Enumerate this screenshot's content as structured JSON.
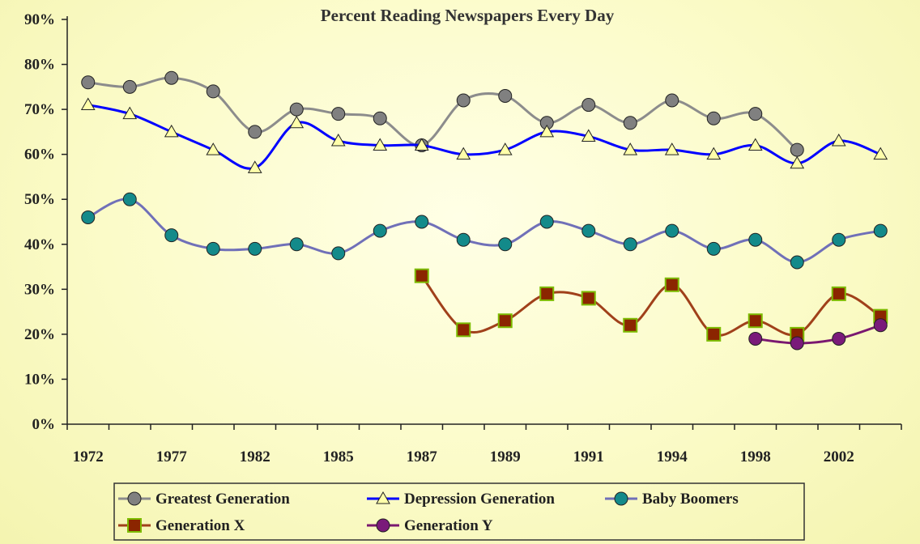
{
  "chart_data": {
    "type": "line",
    "title": "Percent Reading Newspapers Every Day",
    "xlabel": "",
    "ylabel": "",
    "x_tick_labels": [
      "1972",
      "1977",
      "1982",
      "1985",
      "1987",
      "1989",
      "1991",
      "1994",
      "1998",
      "2002"
    ],
    "y_tick_labels": [
      "0%",
      "10%",
      "20%",
      "30%",
      "40%",
      "50%",
      "60%",
      "70%",
      "80%",
      "90%"
    ],
    "ylim": [
      0,
      90
    ],
    "grid": false,
    "legend_position": "bottom",
    "series": [
      {
        "name": "Greatest Generation",
        "color": "#8c8c8c",
        "marker": "circle",
        "marker_fill": "#808080",
        "values": [
          76,
          75,
          77,
          74,
          65,
          70,
          69,
          68,
          62,
          72,
          73,
          67,
          71,
          67,
          72,
          68,
          69,
          61,
          null,
          null
        ]
      },
      {
        "name": "Depression Generation",
        "color": "#0000ff",
        "marker": "triangle",
        "marker_fill": "#ffffaa",
        "values": [
          71,
          69,
          65,
          61,
          57,
          67,
          63,
          62,
          62,
          60,
          61,
          65,
          64,
          61,
          61,
          60,
          62,
          58,
          63,
          60
        ]
      },
      {
        "name": "Baby Boomers",
        "color": "#7070b8",
        "marker": "circle",
        "marker_fill": "#138a8a",
        "values": [
          46,
          50,
          42,
          39,
          39,
          40,
          38,
          43,
          45,
          41,
          40,
          45,
          43,
          40,
          43,
          39,
          41,
          36,
          41,
          43
        ]
      },
      {
        "name": "Generation X",
        "color": "#a0401a",
        "marker": "square",
        "marker_fill": "#8b2500",
        "values": [
          null,
          null,
          null,
          null,
          null,
          null,
          null,
          null,
          33,
          21,
          23,
          29,
          28,
          22,
          31,
          20,
          23,
          20,
          29,
          24
        ]
      },
      {
        "name": "Generation Y",
        "color": "#7a1870",
        "marker": "circle",
        "marker_fill": "#7a1a7a",
        "values": [
          null,
          null,
          null,
          null,
          null,
          null,
          null,
          null,
          null,
          null,
          null,
          null,
          null,
          null,
          null,
          null,
          19,
          18,
          19,
          22
        ]
      }
    ]
  }
}
